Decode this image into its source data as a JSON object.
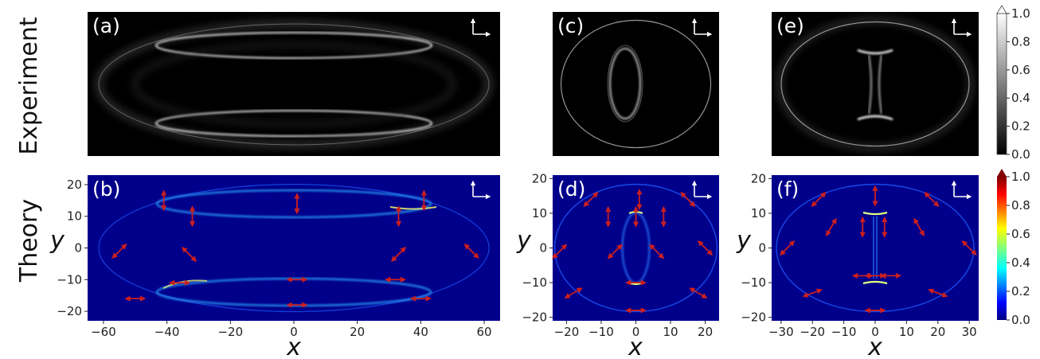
{
  "row_labels": {
    "top": "Experiment",
    "bottom": "Theory"
  },
  "panel_letters": [
    "(a)",
    "(b)",
    "(c)",
    "(d)",
    "(e)",
    "(f)"
  ],
  "chart_data": [
    {
      "id": "a",
      "type": "heatmap",
      "row": "Experiment",
      "colormap": "gray",
      "xlim": [
        -65,
        65
      ],
      "ylim": [
        -22,
        22
      ],
      "rings": [
        [
          0,
          14,
          43,
          4.2
        ],
        [
          0,
          -14,
          43,
          4.2
        ],
        [
          0,
          0,
          62,
          20
        ]
      ]
    },
    {
      "id": "b",
      "type": "heatmap",
      "row": "Theory",
      "colormap": "jet",
      "xlabel": "x",
      "ylabel": "y",
      "xlim": [
        -65,
        65
      ],
      "ylim": [
        -23,
        23
      ],
      "xticks": [
        -60,
        -40,
        -20,
        0,
        20,
        40,
        60
      ],
      "yticks": [
        -20,
        -10,
        0,
        10,
        20
      ],
      "rings": [
        [
          0,
          14,
          43,
          4.2
        ],
        [
          0,
          -14,
          43,
          4.2
        ],
        [
          0,
          0,
          62,
          20
        ]
      ],
      "arrows": [
        [
          -41,
          15,
          90
        ],
        [
          -32,
          10,
          90
        ],
        [
          1,
          14,
          90
        ],
        [
          33,
          10,
          90
        ],
        [
          41,
          15,
          90
        ],
        [
          -55,
          -1,
          45
        ],
        [
          -33,
          -2,
          -45
        ],
        [
          -50,
          -16,
          0
        ],
        [
          -36,
          -11,
          0
        ],
        [
          1,
          -10,
          0
        ],
        [
          1,
          -18,
          0
        ],
        [
          32,
          -10,
          0
        ],
        [
          40,
          -16,
          0
        ],
        [
          33,
          -2,
          45
        ],
        [
          56,
          -1,
          -45
        ]
      ]
    },
    {
      "id": "c",
      "type": "heatmap",
      "row": "Experiment",
      "colormap": "gray",
      "xlim": [
        -24,
        24
      ],
      "ylim": [
        -21,
        21
      ],
      "rings": [
        [
          0,
          0,
          23.5,
          18.5
        ],
        [
          0,
          0,
          3.8,
          10
        ]
      ]
    },
    {
      "id": "d",
      "type": "heatmap",
      "row": "Theory",
      "colormap": "jet",
      "xlabel": "x",
      "ylabel": "y",
      "xlim": [
        -24,
        24
      ],
      "ylim": [
        -21,
        21
      ],
      "xticks": [
        -20,
        -10,
        0,
        10,
        20
      ],
      "yticks": [
        -20,
        -10,
        0,
        10,
        20
      ],
      "rings": [
        [
          0,
          0,
          23.5,
          18.5
        ],
        [
          0,
          0,
          3.8,
          10
        ]
      ],
      "arrows": [
        [
          -13,
          14,
          45
        ],
        [
          1,
          14,
          90
        ],
        [
          15,
          14,
          -45
        ],
        [
          -8,
          9,
          90
        ],
        [
          0,
          9,
          90
        ],
        [
          8,
          9,
          90
        ],
        [
          -22,
          -1,
          45
        ],
        [
          -6,
          -1,
          45
        ],
        [
          6,
          -1,
          -45
        ],
        [
          20,
          0,
          -45
        ],
        [
          0,
          -10,
          0
        ],
        [
          -18,
          -13,
          30
        ],
        [
          18,
          -13,
          -30
        ],
        [
          0,
          -18,
          0
        ]
      ]
    },
    {
      "id": "e",
      "type": "heatmap",
      "row": "Experiment",
      "colormap": "gray",
      "xlim": [
        -33,
        33
      ],
      "ylim": [
        -21,
        21
      ],
      "rings": [
        [
          0,
          0,
          31,
          18.5
        ]
      ]
    },
    {
      "id": "f",
      "type": "heatmap",
      "row": "Theory",
      "colormap": "jet",
      "xlabel": "x",
      "ylabel": "y",
      "xlim": [
        -33,
        33
      ],
      "ylim": [
        -21,
        21
      ],
      "xticks": [
        -30,
        -20,
        -10,
        0,
        10,
        20,
        30
      ],
      "yticks": [
        -20,
        -10,
        0,
        10,
        20
      ],
      "rings": [
        [
          0,
          0,
          31,
          18.5
        ]
      ],
      "arrows": [
        [
          -18,
          14,
          45
        ],
        [
          0,
          15,
          90
        ],
        [
          18,
          14,
          -45
        ],
        [
          -14,
          6,
          60
        ],
        [
          -4,
          6,
          90
        ],
        [
          3,
          6,
          90
        ],
        [
          14,
          6,
          -60
        ],
        [
          -28,
          0,
          45
        ],
        [
          30,
          0,
          -45
        ],
        [
          -4,
          -8,
          0
        ],
        [
          0,
          -8,
          0
        ],
        [
          5,
          -8,
          0
        ],
        [
          -20,
          -13,
          20
        ],
        [
          20,
          -13,
          -20
        ],
        [
          0,
          -18,
          0
        ]
      ]
    }
  ],
  "colorbars": [
    {
      "row": "Experiment",
      "colormap": "gray",
      "range": [
        0,
        1
      ],
      "ticks": [
        "1.0",
        "0.8",
        "0.6",
        "0.4",
        "0.2",
        "0.0"
      ]
    },
    {
      "row": "Theory",
      "colormap": "jet",
      "range": [
        0,
        1
      ],
      "ticks": [
        "1.0",
        "0.8",
        "0.6",
        "0.4",
        "0.2",
        "0.0"
      ]
    }
  ],
  "colors": {
    "jet_background": "#00008b",
    "arrow": "#cc1f1f",
    "experiment_background": "#000000"
  }
}
